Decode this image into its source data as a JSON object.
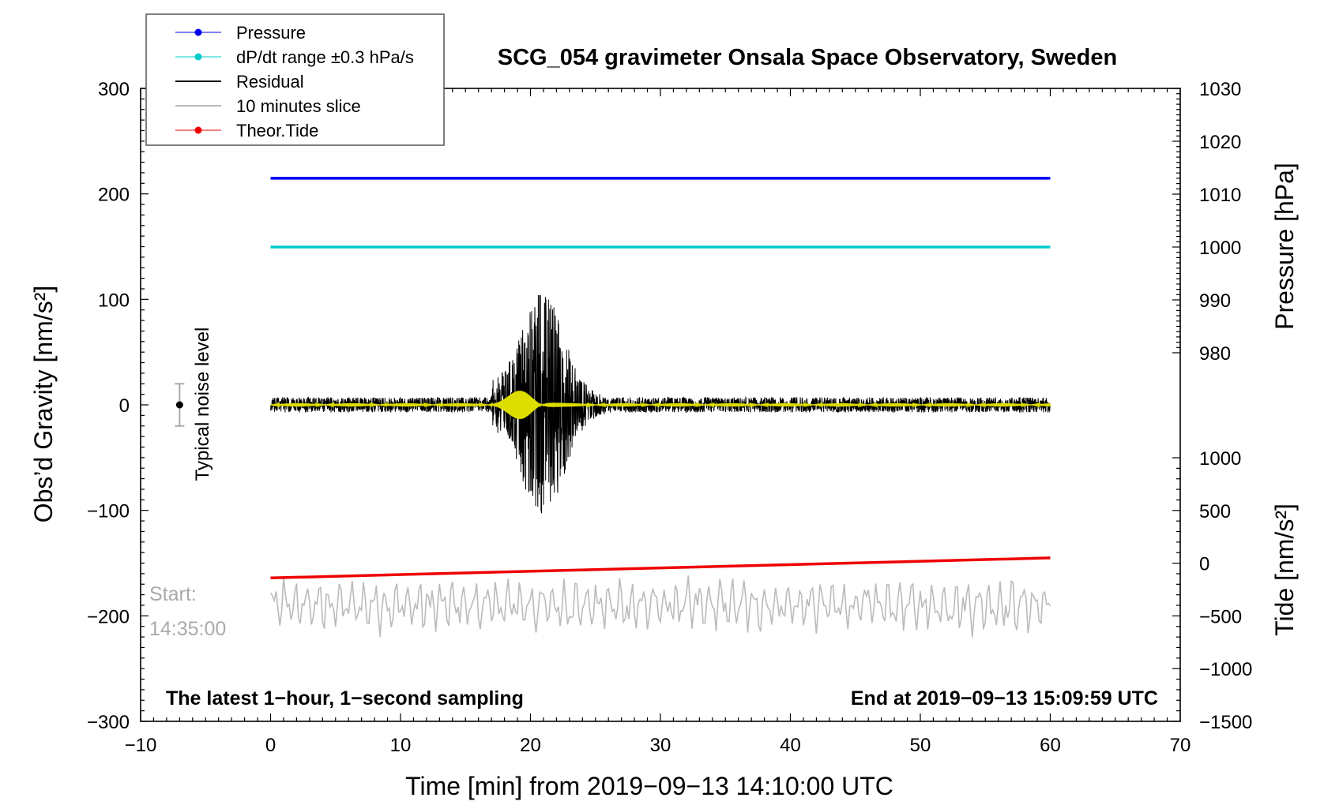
{
  "chart_data": {
    "type": "line",
    "title": "SCG_054 gravimeter Onsala Space Observatory, Sweden",
    "xlabel": "Time [min] from 2019−09−13 14:10:00 UTC",
    "ylabel_left": "Obs’d Gravity [nm/s²]",
    "ylabel_pressure": "Pressure [hPa]",
    "ylabel_tide": "Tide [nm/s²]",
    "xlim": [
      -10,
      70
    ],
    "ylim": [
      -300,
      300
    ],
    "pressure_axis_range": [
      980,
      1030
    ],
    "tide_axis_range": [
      -1500,
      1000
    ],
    "x_ticks": [
      "−10",
      "0",
      "10",
      "20",
      "30",
      "40",
      "50",
      "60",
      "70"
    ],
    "y_ticks": [
      "−300",
      "−200",
      "−100",
      "0",
      "100",
      "200",
      "300"
    ],
    "pressure_ticks": [
      "980",
      "990",
      "1000",
      "1010",
      "1020",
      "1030"
    ],
    "tide_ticks": [
      "−1500",
      "−1000",
      "−500",
      "0",
      "500",
      "1000"
    ],
    "legend": [
      {
        "label": "Pressure",
        "color": "#0000ee",
        "marker": true
      },
      {
        "label": "dP/dt range ±0.3 hPa/s",
        "color": "#00cccc",
        "marker": true
      },
      {
        "label": "Residual",
        "color": "#000000",
        "marker": false
      },
      {
        "label": "10 minutes slice",
        "color": "#bbbbbb",
        "marker": false
      },
      {
        "label": "Theor.Tide",
        "color": "#ee0000",
        "marker": true
      }
    ],
    "series": [
      {
        "name": "Pressure",
        "color": "#0000ee",
        "axis": "pressure",
        "x": [
          0,
          60
        ],
        "values": [
          1013,
          1013
        ]
      },
      {
        "name": "dP/dt range",
        "color": "#00cccc",
        "axis": "pressure",
        "x": [
          0,
          60
        ],
        "values": [
          1000,
          1000
        ]
      },
      {
        "name": "Theor.Tide",
        "color": "#ee0000",
        "axis": "tide",
        "x": [
          0,
          60
        ],
        "values": [
          -140,
          50
        ]
      },
      {
        "name": "Residual",
        "color": "#000000",
        "axis": "gravity",
        "x_range": [
          0,
          60
        ],
        "baseline": 0,
        "noise_amplitude": 8,
        "peak_min": 21,
        "peak_range": [
          -110,
          104
        ]
      },
      {
        "name": "Filtered residual",
        "color": "#dddd00",
        "axis": "gravity",
        "x_range": [
          0,
          60
        ],
        "baseline": 0,
        "burst_min": 19.5,
        "burst_amplitude": 13
      },
      {
        "name": "10 minutes slice",
        "color": "#bbbbbb",
        "axis": "gravity",
        "x_range": [
          0,
          60
        ],
        "baseline": -190,
        "value_range": [
          -222,
          -150
        ]
      }
    ],
    "noise_bar": {
      "label": "Typical noise level",
      "x": -7,
      "center": 0,
      "range": [
        -20,
        20
      ]
    },
    "annotations": {
      "start_label": "Start:",
      "start_time": "14:35:00",
      "sampling_note": "The latest 1−hour, 1−second sampling",
      "end_note": "End at 2019−09−13 15:09:59 UTC"
    }
  }
}
